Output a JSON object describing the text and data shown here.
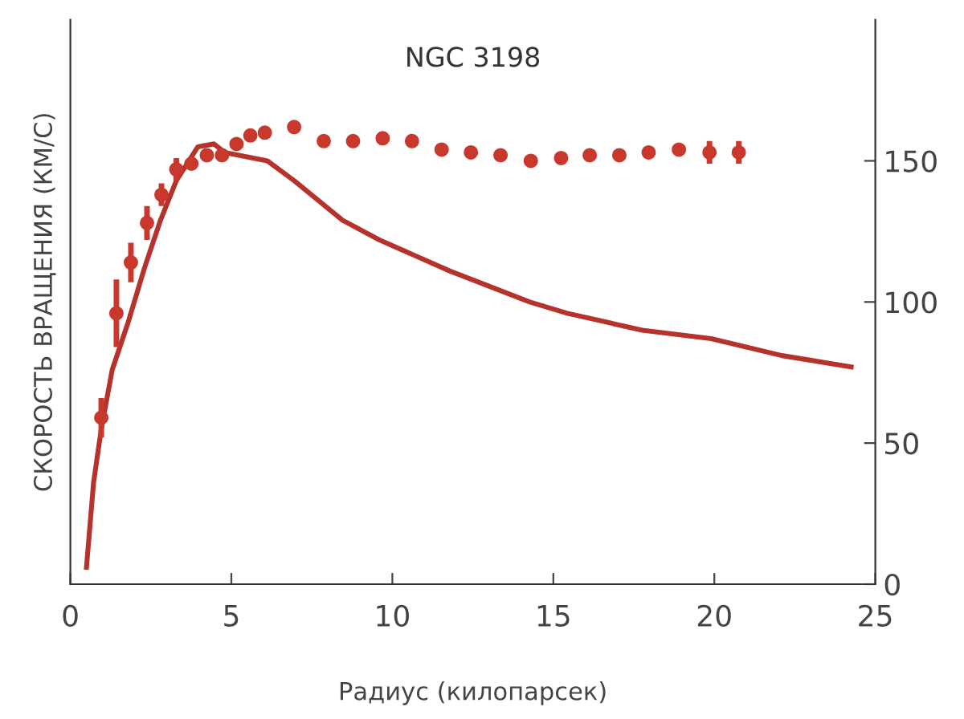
{
  "chart_data": {
    "type": "scatter",
    "title": "NGC 3198",
    "xlabel": "Радиус (килопарсек)",
    "ylabel": "СКОРОСТЬ ВРАЩЕНИЯ (КМ/С)",
    "xlim": [
      0,
      25
    ],
    "xticks": [
      0,
      5,
      10,
      15,
      20,
      25
    ],
    "ylim": [
      0,
      200
    ],
    "yticks": [
      0,
      50,
      100,
      150
    ],
    "grid": false,
    "legend": false,
    "series": [
      {
        "color": "#c8382c",
        "marker": "circle",
        "x": [
          0.96,
          1.43,
          1.88,
          2.38,
          2.83,
          3.29,
          3.76,
          4.24,
          4.71,
          5.16,
          5.59,
          6.04,
          6.95,
          7.87,
          8.78,
          9.7,
          10.61,
          11.53,
          12.44,
          13.36,
          14.3,
          15.24,
          16.13,
          17.05,
          17.96,
          18.9,
          19.85,
          20.76
        ],
        "values": [
          59,
          96,
          114,
          128,
          138,
          147,
          149,
          152,
          152,
          156,
          159,
          160,
          162,
          157,
          157,
          158,
          157,
          154,
          153,
          152,
          150,
          151,
          152,
          152,
          153,
          154,
          153,
          153
        ],
        "errors": [
          7,
          12,
          7,
          6,
          4,
          4,
          null,
          null,
          null,
          null,
          null,
          null,
          null,
          null,
          null,
          null,
          null,
          null,
          null,
          null,
          null,
          null,
          null,
          null,
          null,
          null,
          4,
          4
        ]
      },
      {
        "type": "line",
        "color": "#b5332a",
        "line_style": "solid",
        "x": [
          0.5,
          0.72,
          0.96,
          1.3,
          1.8,
          2.3,
          2.8,
          3.29,
          3.96,
          4.46,
          4.79,
          6.12,
          6.95,
          8.45,
          9.6,
          11.78,
          14.27,
          15.43,
          17.76,
          19.9,
          22.1,
          24.25
        ],
        "values": [
          6,
          36,
          55,
          76,
          93,
          112,
          129,
          143,
          155,
          156,
          153,
          150,
          143,
          129,
          122,
          111,
          100,
          96,
          90,
          87,
          81,
          77
        ]
      }
    ]
  }
}
